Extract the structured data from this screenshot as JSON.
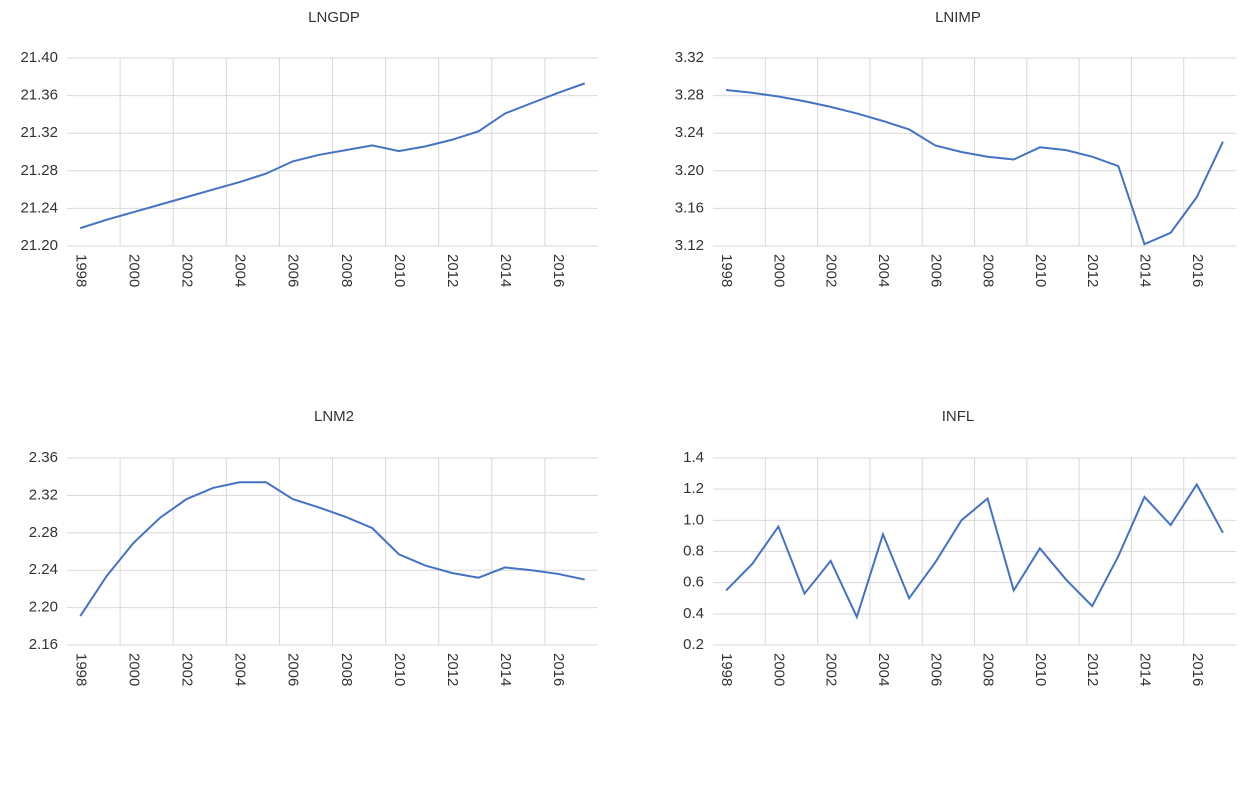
{
  "chart_data": [
    {
      "type": "line",
      "title": "LNGDP",
      "categories": [
        "1998",
        null,
        "2000",
        null,
        "2002",
        null,
        "2004",
        null,
        "2006",
        null,
        "2008",
        null,
        "2010",
        null,
        "2012",
        null,
        "2014",
        null,
        "2016",
        null
      ],
      "values": [
        21.219,
        21.228,
        21.236,
        21.244,
        21.252,
        21.26,
        21.268,
        21.277,
        21.29,
        21.297,
        21.302,
        21.307,
        21.301,
        21.306,
        21.313,
        21.322,
        21.341,
        21.352,
        21.363,
        21.373
      ],
      "color": "#4472c4",
      "ylim": [
        21.2,
        21.4
      ],
      "yticks": [
        {
          "value": 21.2,
          "label": "21.20"
        },
        21.24,
        21.28,
        21.32,
        21.36,
        {
          "value": 21.4,
          "label": "21.40"
        }
      ],
      "grid": true
    },
    {
      "type": "line",
      "title": "LNIMP",
      "categories": [
        "1998",
        null,
        "2000",
        null,
        "2002",
        null,
        "2004",
        null,
        "2006",
        null,
        "2008",
        null,
        "2010",
        null,
        "2012",
        null,
        "2014",
        null,
        "2016",
        null
      ],
      "values": [
        3.286,
        3.283,
        3.279,
        3.274,
        3.268,
        3.261,
        3.253,
        3.244,
        3.227,
        3.22,
        3.215,
        3.212,
        3.225,
        3.222,
        3.215,
        3.205,
        3.122,
        3.134,
        3.172,
        3.231
      ],
      "color": "#4472c4",
      "ylim": [
        3.12,
        3.32
      ],
      "yticks": [
        3.12,
        3.16,
        {
          "value": 3.2,
          "label": "3.20"
        },
        3.24,
        3.28,
        3.32
      ],
      "grid": true
    },
    {
      "type": "line",
      "title": "LNM2",
      "categories": [
        "1998",
        null,
        "2000",
        null,
        "2002",
        null,
        "2004",
        null,
        "2006",
        null,
        "2008",
        null,
        "2010",
        null,
        "2012",
        null,
        "2014",
        null,
        "2016",
        null
      ],
      "values": [
        2.191,
        2.234,
        2.269,
        2.296,
        2.316,
        2.328,
        2.334,
        2.334,
        2.316,
        2.307,
        2.297,
        2.285,
        2.257,
        2.245,
        2.237,
        2.232,
        2.243,
        2.24,
        2.236,
        2.23
      ],
      "color": "#4472c4",
      "ylim": [
        2.16,
        2.36
      ],
      "yticks": [
        2.16,
        {
          "value": 2.2,
          "label": "2.20"
        },
        2.24,
        2.28,
        2.32,
        2.36
      ],
      "grid": true
    },
    {
      "type": "line",
      "title": "INFL",
      "categories": [
        "1998",
        null,
        "2000",
        null,
        "2002",
        null,
        "2004",
        null,
        "2006",
        null,
        "2008",
        null,
        "2010",
        null,
        "2012",
        null,
        "2014",
        null,
        "2016",
        null
      ],
      "values": [
        0.55,
        0.72,
        0.96,
        0.53,
        0.74,
        0.38,
        0.91,
        0.5,
        0.73,
        1.0,
        1.14,
        0.55,
        0.82,
        0.62,
        0.45,
        0.77,
        1.15,
        0.97,
        1.23,
        0.92
      ],
      "color": "#4472c4",
      "ylim": [
        0.2,
        1.4
      ],
      "yticks": [
        0.2,
        0.4,
        0.6,
        0.8,
        {
          "value": 1,
          "label": "1.0"
        },
        1.2,
        1.4
      ],
      "grid": true
    }
  ]
}
